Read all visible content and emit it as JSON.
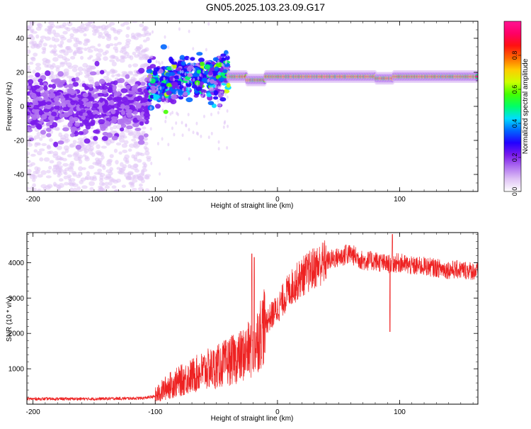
{
  "figure": {
    "title": "GN05.2025.103.23.09.G17"
  },
  "chart_data": [
    {
      "type": "heatmap",
      "xlabel": "Height of straight line (km)",
      "ylabel": "Frequency (Hz)",
      "xlim": [
        -205,
        164
      ],
      "ylim": [
        -50,
        50
      ],
      "x_ticks": [
        -200,
        -100,
        0,
        100
      ],
      "y_ticks": [
        -40,
        -20,
        0,
        20,
        40
      ],
      "grid": false,
      "colorbar": {
        "label": "Normalized spectral amplitude",
        "range": [
          0,
          1
        ],
        "ticks": [
          0.0,
          0.2,
          0.4,
          0.6,
          0.8
        ],
        "tick_labels": [
          "0.0",
          "0.2",
          "0.4",
          "0.6",
          "0.8"
        ],
        "colormap": [
          "#ffffff",
          "#e0c4f5",
          "#b072f0",
          "#7a1aeb",
          "#2200ff",
          "#0066ff",
          "#00ddff",
          "#00ff66",
          "#44ff00",
          "#ccff00",
          "#ffcc00",
          "#ff6600",
          "#ff1111",
          "#ff0066",
          "#ff1493"
        ]
      },
      "regions": [
        {
          "x_range": [
            -205,
            -105
          ],
          "freq_center": 0,
          "freq_spread": 8,
          "noise_spread": 50,
          "level": "low"
        },
        {
          "x_range": [
            -105,
            -40
          ],
          "freq_center": 15,
          "freq_spread": 6,
          "level": "medium"
        },
        {
          "x_range": [
            -40,
            164
          ],
          "freq_center": 17.5,
          "freq_spread": 1.5,
          "level": "high"
        }
      ]
    },
    {
      "type": "line",
      "xlabel": "Height of straight line (km)",
      "ylabel": "SNR (10 * v/v)",
      "xlim": [
        -205,
        164
      ],
      "ylim": [
        0,
        4850
      ],
      "x_ticks": [
        -200,
        -100,
        0,
        100
      ],
      "y_ticks": [
        1000,
        2000,
        3000,
        4000
      ],
      "grid": false,
      "series": [
        {
          "color": "#ee2222",
          "trend": [
            [
              -205,
              150
            ],
            [
              -150,
              150
            ],
            [
              -110,
              170
            ],
            [
              -100,
              220
            ],
            [
              -90,
              500
            ],
            [
              -80,
              650
            ],
            [
              -70,
              800
            ],
            [
              -60,
              950
            ],
            [
              -50,
              1050
            ],
            [
              -40,
              1200
            ],
            [
              -30,
              1350
            ],
            [
              -20,
              1600
            ],
            [
              -10,
              2300
            ],
            [
              0,
              2700
            ],
            [
              10,
              3250
            ],
            [
              20,
              3600
            ],
            [
              30,
              3850
            ],
            [
              40,
              4050
            ],
            [
              50,
              4150
            ],
            [
              60,
              4250
            ],
            [
              70,
              4050
            ],
            [
              80,
              4050
            ],
            [
              90,
              3950
            ],
            [
              100,
              4000
            ],
            [
              110,
              3900
            ],
            [
              120,
              3900
            ],
            [
              130,
              3850
            ],
            [
              140,
              3800
            ],
            [
              150,
              3800
            ],
            [
              164,
              3750
            ]
          ],
          "spikes": [
            {
              "x": -21,
              "value": 4250
            },
            {
              "x": -19,
              "value": 4150
            },
            {
              "x": 92,
              "value": 2050
            },
            {
              "x": 94,
              "value": 4800
            },
            {
              "x": 56,
              "value": 4500
            }
          ]
        }
      ]
    }
  ]
}
